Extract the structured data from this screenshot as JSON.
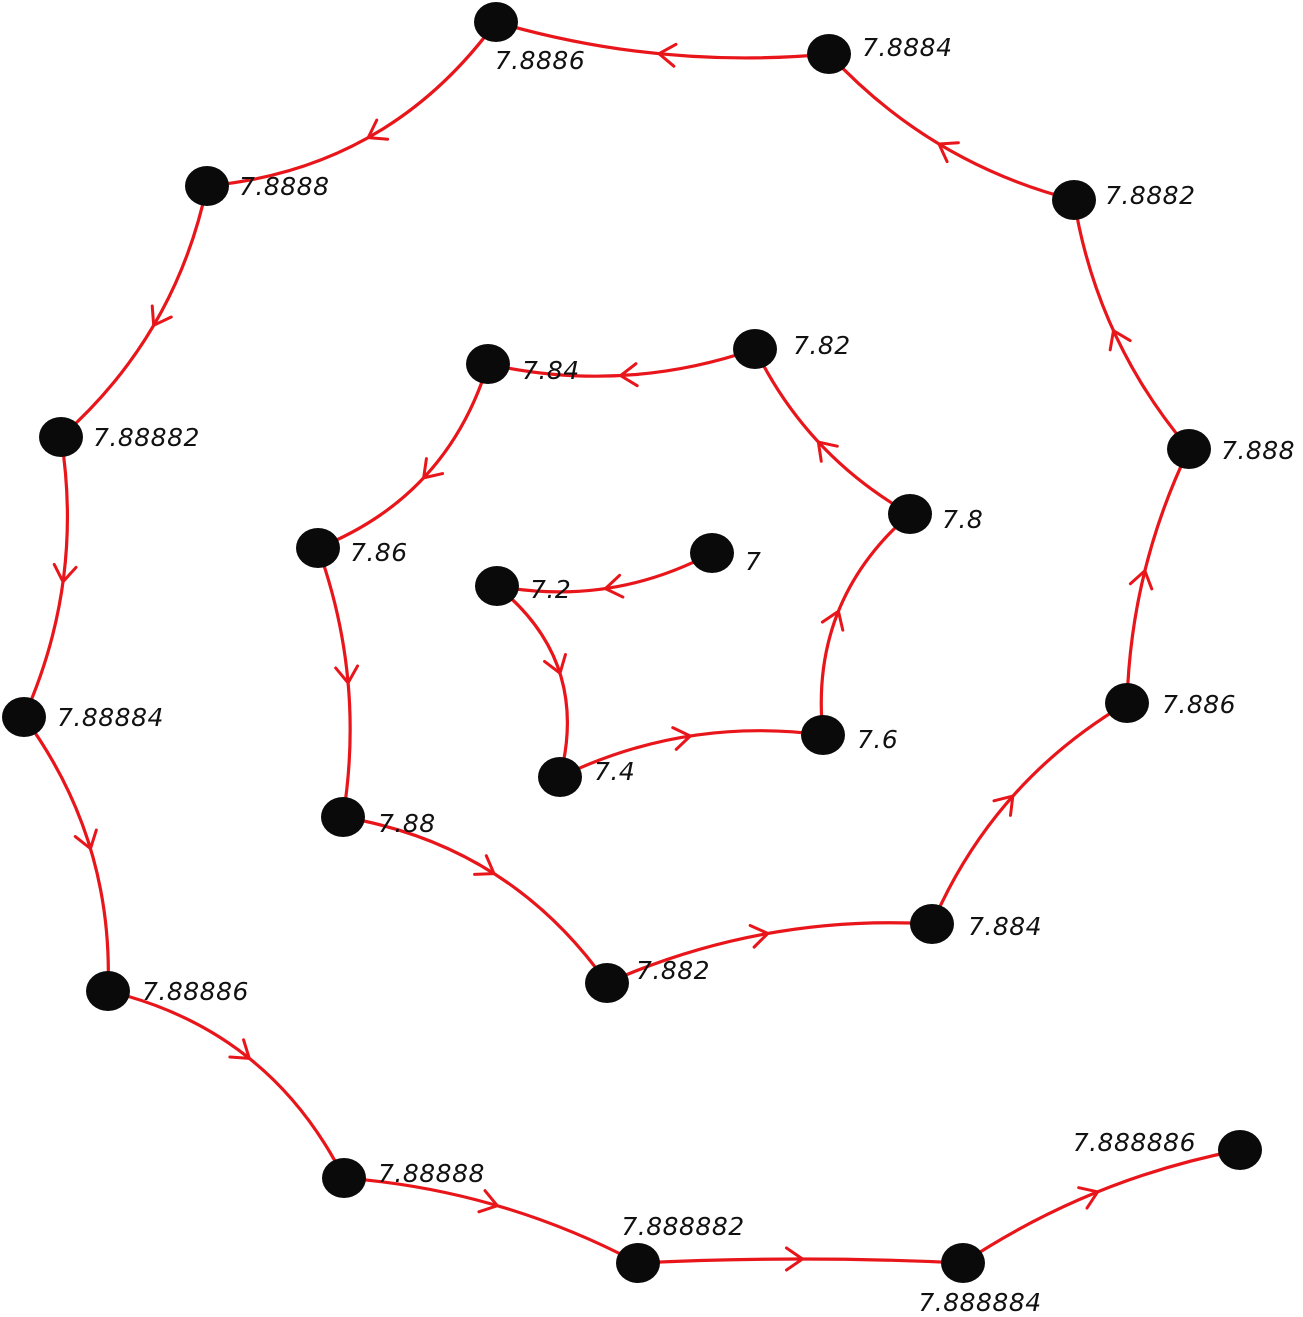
{
  "diagram": {
    "type": "spiral-sequence",
    "colors": {
      "path": "#e8161b",
      "node": "#0a0a0a",
      "label": "#111111",
      "background": "#ffffff"
    },
    "nodes": [
      {
        "id": "n0",
        "label": "7"
      },
      {
        "id": "n1",
        "label": "7.2"
      },
      {
        "id": "n2",
        "label": "7.4"
      },
      {
        "id": "n3",
        "label": "7.6"
      },
      {
        "id": "n4",
        "label": "7.8"
      },
      {
        "id": "n5",
        "label": "7.82"
      },
      {
        "id": "n6",
        "label": "7.84"
      },
      {
        "id": "n7",
        "label": "7.86"
      },
      {
        "id": "n8",
        "label": "7.88"
      },
      {
        "id": "n9",
        "label": "7.882"
      },
      {
        "id": "n10",
        "label": "7.884"
      },
      {
        "id": "n11",
        "label": "7.886"
      },
      {
        "id": "n12",
        "label": "7.888"
      },
      {
        "id": "n13",
        "label": "7.8882"
      },
      {
        "id": "n14",
        "label": "7.8884"
      },
      {
        "id": "n15",
        "label": "7.8886"
      },
      {
        "id": "n16",
        "label": "7.8888"
      },
      {
        "id": "n17",
        "label": "7.88882"
      },
      {
        "id": "n18",
        "label": "7.88884"
      },
      {
        "id": "n19",
        "label": "7.88886"
      },
      {
        "id": "n20",
        "label": "7.88888"
      },
      {
        "id": "n21",
        "label": "7.888882"
      },
      {
        "id": "n22",
        "label": "7.888884"
      },
      {
        "id": "n23",
        "label": "7.888886"
      }
    ]
  }
}
